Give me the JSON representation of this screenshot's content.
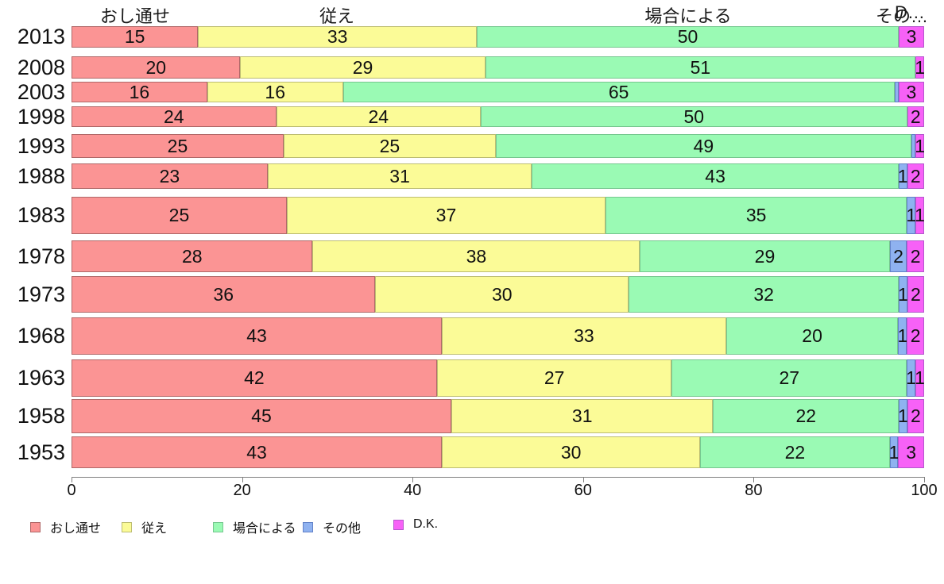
{
  "chart_data": {
    "type": "bar",
    "variant": "horizontal-stacked-percentage",
    "title": "",
    "xlabel": "",
    "ylabel": "",
    "xlim": [
      0,
      100
    ],
    "x_ticks": [
      "0",
      "20",
      "40",
      "60",
      "80",
      "100"
    ],
    "grid": "off",
    "legend_position": "bottom",
    "categories": [
      "2013",
      "2008",
      "2003",
      "1998",
      "1993",
      "1988",
      "1983",
      "1978",
      "1973",
      "1968",
      "1963",
      "1958",
      "1953"
    ],
    "series": [
      {
        "name": "おし通せ",
        "color": "#FB9494",
        "border_color": "#B06868",
        "values": [
          15,
          20,
          16,
          24,
          25,
          23,
          25,
          28,
          36,
          43,
          42,
          45,
          43
        ]
      },
      {
        "name": "従え",
        "color": "#FBFB97",
        "border_color": "#BDBD72",
        "values": [
          33,
          29,
          16,
          24,
          25,
          31,
          37,
          38,
          30,
          33,
          27,
          31,
          30
        ]
      },
      {
        "name": "場合による",
        "color": "#9AFAB4",
        "border_color": "#76C78F",
        "values": [
          50,
          51,
          65,
          50,
          49,
          43,
          35,
          29,
          32,
          20,
          27,
          22,
          22
        ]
      },
      {
        "name": "その他",
        "color": "#8FB2F0",
        "border_color": "#6282C8",
        "values": [
          0,
          0,
          0.5,
          0,
          0.5,
          1,
          1,
          2,
          1,
          1,
          1,
          1,
          1
        ]
      },
      {
        "name": "D.K.",
        "color": "#F761F7",
        "border_color": "#B557CD",
        "values": [
          3,
          1,
          3,
          2,
          1,
          2,
          1,
          2,
          2,
          2,
          1,
          2,
          3
        ]
      }
    ],
    "column_headers": [
      "おし通せ",
      "従え",
      "場合による",
      "その…",
      "D…"
    ]
  },
  "legend": {
    "items": [
      {
        "label": "おし通せ",
        "color": "#FB9494",
        "border_color": "#B06868"
      },
      {
        "label": "従え",
        "color": "#FBFB97",
        "border_color": "#BDBD72"
      },
      {
        "label": "場合による",
        "color": "#9AFAB4",
        "border_color": "#76C78F"
      },
      {
        "label": "その他",
        "color": "#8FB2F0",
        "border_color": "#6282C8"
      },
      {
        "label": "D.K.",
        "color": "#F761F7",
        "border_color": "#B557CD"
      }
    ]
  }
}
